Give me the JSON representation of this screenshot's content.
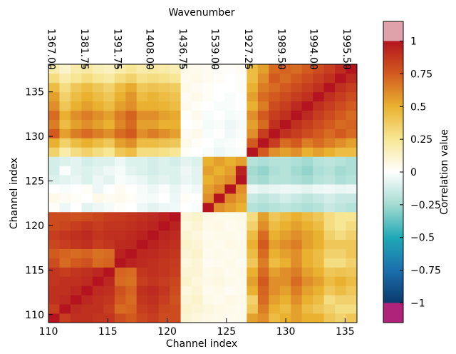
{
  "chart_data": {
    "type": "heatmap",
    "title": "Wavenumber",
    "xlabel": "Channel index",
    "ylabel": "Channel index",
    "xlim": [
      110,
      136
    ],
    "xticks": [
      110,
      115,
      120,
      125,
      130,
      135
    ],
    "ylim": [
      109.1,
      138.1
    ],
    "yticks": [
      110,
      115,
      120,
      125,
      130,
      135
    ],
    "x2ticks": [
      {
        "value": 110.2,
        "label": "1367.00"
      },
      {
        "value": 113.0,
        "label": "1381.75"
      },
      {
        "value": 115.8,
        "label": "1391.75"
      },
      {
        "value": 118.5,
        "label": "1408.00"
      },
      {
        "value": 121.3,
        "label": "1436.75"
      },
      {
        "value": 124.0,
        "label": "1539.00"
      },
      {
        "value": 126.8,
        "label": "1927.25"
      },
      {
        "value": 129.6,
        "label": "1989.50"
      },
      {
        "value": 132.3,
        "label": "1994.00"
      },
      {
        "value": 135.1,
        "label": "1995.50"
      }
    ],
    "z": [
      [
        1.0,
        0.85,
        0.9,
        0.9,
        0.88,
        0.88,
        0.8,
        0.75,
        0.82,
        0.85,
        0.8,
        0.8,
        0.1,
        0.08,
        0.06,
        0.05,
        0.04,
        0.05,
        0.55,
        0.6,
        0.45,
        0.5,
        0.55,
        0.5,
        0.5,
        0.4,
        0.35,
        0.4
      ],
      [
        0.85,
        1.0,
        0.92,
        0.9,
        0.9,
        0.85,
        0.7,
        0.72,
        0.85,
        0.88,
        0.82,
        0.8,
        0.12,
        0.1,
        0.08,
        0.06,
        0.05,
        0.04,
        0.4,
        0.65,
        0.5,
        0.45,
        0.55,
        0.45,
        0.4,
        0.35,
        0.3,
        0.3
      ],
      [
        0.9,
        0.92,
        1.0,
        0.93,
        0.9,
        0.88,
        0.75,
        0.7,
        0.88,
        0.9,
        0.85,
        0.78,
        0.1,
        0.12,
        0.05,
        0.04,
        0.06,
        0.05,
        0.35,
        0.7,
        0.55,
        0.5,
        0.6,
        0.5,
        0.45,
        0.3,
        0.35,
        0.35
      ],
      [
        0.9,
        0.9,
        0.93,
        1.0,
        0.92,
        0.9,
        0.78,
        0.72,
        0.9,
        0.92,
        0.88,
        0.8,
        0.08,
        0.1,
        0.04,
        0.05,
        0.03,
        0.04,
        0.5,
        0.72,
        0.6,
        0.55,
        0.65,
        0.55,
        0.5,
        0.4,
        0.45,
        0.4
      ],
      [
        0.88,
        0.9,
        0.9,
        0.92,
        1.0,
        0.93,
        0.7,
        0.68,
        0.85,
        0.88,
        0.85,
        0.82,
        0.12,
        0.08,
        0.06,
        0.07,
        0.05,
        0.04,
        0.55,
        0.75,
        0.6,
        0.6,
        0.7,
        0.6,
        0.55,
        0.45,
        0.5,
        0.45
      ],
      [
        0.88,
        0.85,
        0.88,
        0.9,
        0.93,
        1.0,
        0.72,
        0.7,
        0.88,
        0.9,
        0.88,
        0.85,
        0.1,
        0.1,
        0.05,
        0.06,
        0.04,
        0.05,
        0.5,
        0.7,
        0.55,
        0.6,
        0.65,
        0.55,
        0.5,
        0.4,
        0.42,
        0.4
      ],
      [
        0.8,
        0.7,
        0.75,
        0.78,
        0.7,
        0.72,
        1.0,
        0.95,
        0.92,
        0.9,
        0.88,
        0.86,
        0.08,
        0.1,
        0.03,
        0.04,
        0.05,
        0.03,
        0.4,
        0.65,
        0.45,
        0.5,
        0.6,
        0.5,
        0.45,
        0.3,
        0.3,
        0.35
      ],
      [
        0.75,
        0.72,
        0.7,
        0.72,
        0.68,
        0.7,
        0.95,
        1.0,
        0.93,
        0.92,
        0.9,
        0.88,
        0.1,
        0.12,
        0.04,
        0.05,
        0.04,
        0.05,
        0.45,
        0.7,
        0.5,
        0.55,
        0.6,
        0.5,
        0.45,
        0.35,
        0.35,
        0.4
      ],
      [
        0.82,
        0.85,
        0.88,
        0.9,
        0.85,
        0.88,
        0.92,
        0.93,
        1.0,
        0.95,
        0.92,
        0.9,
        0.12,
        0.1,
        0.05,
        0.04,
        0.06,
        0.05,
        0.5,
        0.75,
        0.55,
        0.6,
        0.65,
        0.55,
        0.5,
        0.4,
        0.4,
        0.4
      ],
      [
        0.85,
        0.88,
        0.9,
        0.92,
        0.88,
        0.9,
        0.9,
        0.92,
        0.95,
        1.0,
        0.94,
        0.92,
        0.1,
        0.08,
        0.04,
        0.05,
        0.05,
        0.04,
        0.45,
        0.7,
        0.5,
        0.55,
        0.6,
        0.55,
        0.5,
        0.35,
        0.3,
        0.35
      ],
      [
        0.8,
        0.82,
        0.85,
        0.88,
        0.85,
        0.88,
        0.88,
        0.9,
        0.92,
        0.94,
        1.0,
        0.95,
        0.08,
        0.1,
        0.05,
        0.06,
        0.04,
        0.05,
        0.35,
        0.6,
        0.45,
        0.5,
        0.55,
        0.5,
        0.45,
        0.3,
        0.25,
        0.3
      ],
      [
        0.8,
        0.8,
        0.78,
        0.8,
        0.82,
        0.85,
        0.86,
        0.88,
        0.9,
        0.92,
        0.95,
        1.0,
        0.1,
        0.12,
        0.06,
        0.05,
        0.05,
        0.06,
        0.3,
        0.55,
        0.4,
        0.45,
        0.5,
        0.45,
        0.4,
        0.3,
        0.25,
        0.25
      ],
      [
        0.02,
        -0.05,
        0.0,
        -0.08,
        -0.05,
        -0.03,
        0.02,
        0.0,
        -0.05,
        -0.08,
        -0.05,
        -0.04,
        0.0,
        -0.02,
        1.0,
        0.6,
        0.55,
        0.5,
        -0.2,
        -0.22,
        -0.2,
        -0.18,
        -0.2,
        -0.22,
        -0.2,
        -0.15,
        -0.18,
        -0.2
      ],
      [
        0.05,
        0.03,
        0.02,
        0.0,
        0.05,
        0.03,
        0.04,
        0.02,
        -0.02,
        -0.03,
        0.0,
        -0.05,
        0.02,
        0.0,
        0.6,
        1.0,
        0.62,
        0.55,
        -0.15,
        -0.18,
        -0.15,
        -0.12,
        -0.15,
        -0.18,
        -0.15,
        -0.12,
        -0.15,
        -0.15
      ],
      [
        0.0,
        -0.02,
        0.0,
        0.02,
        -0.05,
        0.0,
        0.03,
        0.0,
        -0.03,
        -0.05,
        -0.02,
        -0.06,
        -0.02,
        -0.04,
        0.55,
        0.62,
        1.0,
        0.6,
        -0.05,
        -0.08,
        -0.06,
        -0.05,
        -0.06,
        -0.08,
        -0.05,
        -0.04,
        -0.06,
        -0.05
      ],
      [
        -0.1,
        -0.08,
        -0.06,
        -0.1,
        -0.05,
        -0.08,
        -0.02,
        -0.04,
        -0.06,
        -0.1,
        -0.08,
        -0.1,
        -0.06,
        -0.08,
        0.5,
        0.55,
        0.6,
        1.0,
        -0.22,
        -0.25,
        -0.2,
        -0.2,
        -0.22,
        -0.25,
        -0.2,
        -0.18,
        -0.22,
        -0.2
      ],
      [
        -0.12,
        -0.02,
        -0.08,
        -0.1,
        -0.08,
        -0.05,
        -0.03,
        -0.08,
        -0.1,
        -0.12,
        -0.1,
        -0.1,
        -0.05,
        -0.08,
        0.55,
        0.5,
        0.55,
        0.95,
        -0.25,
        -0.28,
        -0.22,
        -0.2,
        -0.25,
        -0.28,
        -0.22,
        -0.2,
        -0.25,
        -0.22
      ],
      [
        -0.12,
        -0.1,
        -0.08,
        -0.12,
        -0.1,
        -0.1,
        -0.05,
        -0.1,
        -0.1,
        -0.12,
        -0.1,
        -0.12,
        -0.08,
        -0.1,
        0.5,
        0.55,
        0.5,
        0.55,
        -0.2,
        -0.22,
        -0.2,
        -0.2,
        -0.22,
        -0.25,
        -0.2,
        -0.18,
        -0.2,
        -0.22
      ],
      [
        0.35,
        0.2,
        0.3,
        0.35,
        0.3,
        0.25,
        0.4,
        0.45,
        0.3,
        0.3,
        0.28,
        0.25,
        0.02,
        0.0,
        -0.02,
        -0.05,
        -0.03,
        -0.02,
        1.0,
        0.75,
        0.6,
        0.55,
        0.6,
        0.5,
        0.55,
        0.5,
        0.45,
        0.45
      ],
      [
        0.5,
        0.35,
        0.45,
        0.5,
        0.45,
        0.4,
        0.55,
        0.6,
        0.45,
        0.45,
        0.42,
        0.4,
        0.05,
        0.02,
        0.0,
        -0.03,
        -0.02,
        0.0,
        0.75,
        1.0,
        0.85,
        0.7,
        0.75,
        0.65,
        0.7,
        0.65,
        0.6,
        0.55
      ],
      [
        0.75,
        0.55,
        0.65,
        0.7,
        0.65,
        0.6,
        0.7,
        0.75,
        0.6,
        0.65,
        0.6,
        0.55,
        0.03,
        0.05,
        -0.02,
        0.0,
        -0.04,
        -0.02,
        0.6,
        0.85,
        1.0,
        0.9,
        0.85,
        0.8,
        0.75,
        0.7,
        0.75,
        0.7
      ],
      [
        0.65,
        0.45,
        0.55,
        0.6,
        0.55,
        0.5,
        0.62,
        0.7,
        0.55,
        0.55,
        0.5,
        0.5,
        0.0,
        0.02,
        -0.03,
        -0.02,
        -0.05,
        -0.03,
        0.55,
        0.7,
        0.9,
        1.0,
        0.9,
        0.85,
        0.8,
        0.75,
        0.7,
        0.72
      ],
      [
        0.7,
        0.5,
        0.6,
        0.65,
        0.6,
        0.55,
        0.65,
        0.72,
        0.6,
        0.6,
        0.55,
        0.52,
        0.02,
        0.04,
        -0.02,
        0.0,
        -0.03,
        -0.02,
        0.6,
        0.75,
        0.85,
        0.9,
        1.0,
        0.92,
        0.85,
        0.8,
        0.75,
        0.7
      ],
      [
        0.6,
        0.4,
        0.5,
        0.55,
        0.5,
        0.45,
        0.55,
        0.6,
        0.5,
        0.5,
        0.48,
        0.45,
        0.04,
        0.02,
        0.0,
        -0.02,
        -0.02,
        0.0,
        0.5,
        0.65,
        0.8,
        0.85,
        0.92,
        1.0,
        0.9,
        0.85,
        0.8,
        0.75
      ],
      [
        0.55,
        0.35,
        0.45,
        0.5,
        0.45,
        0.4,
        0.5,
        0.58,
        0.45,
        0.48,
        0.45,
        0.42,
        0.03,
        0.05,
        0.02,
        0.0,
        -0.02,
        0.0,
        0.55,
        0.7,
        0.75,
        0.8,
        0.85,
        0.9,
        1.0,
        0.9,
        0.85,
        0.8
      ],
      [
        0.45,
        0.3,
        0.4,
        0.45,
        0.4,
        0.35,
        0.45,
        0.52,
        0.4,
        0.42,
        0.4,
        0.38,
        0.05,
        0.03,
        0.02,
        0.0,
        0.0,
        0.02,
        0.5,
        0.65,
        0.7,
        0.75,
        0.8,
        0.85,
        0.9,
        1.0,
        0.9,
        0.85
      ],
      [
        0.3,
        0.2,
        0.25,
        0.3,
        0.25,
        0.22,
        0.3,
        0.35,
        0.28,
        0.3,
        0.28,
        0.25,
        0.04,
        0.05,
        0.03,
        0.02,
        0.0,
        0.02,
        0.45,
        0.6,
        0.75,
        0.7,
        0.75,
        0.8,
        0.85,
        0.9,
        1.0,
        0.92
      ],
      [
        0.2,
        0.12,
        0.2,
        0.22,
        0.18,
        0.15,
        0.2,
        0.25,
        0.2,
        0.22,
        0.2,
        0.18,
        0.05,
        0.04,
        0.03,
        0.02,
        0.02,
        0.03,
        0.45,
        0.55,
        0.7,
        0.72,
        0.7,
        0.75,
        0.8,
        0.85,
        0.92,
        1.0
      ]
    ],
    "colorbar": {
      "label": "Correlation value",
      "lim": [
        -1.15,
        1.15
      ],
      "ticks": [
        {
          "value": -1,
          "label": "−1"
        },
        {
          "value": -0.75,
          "label": "−0.75"
        },
        {
          "value": -0.5,
          "label": "−0.5"
        },
        {
          "value": -0.25,
          "label": "−0.25"
        },
        0,
        0.25,
        0.5,
        0.75,
        1
      ],
      "color_range": [
        -1,
        1
      ],
      "colors": [
        "#0b3a6e",
        "#1b6fae",
        "#1fa9b6",
        "#a3dbd0",
        "#ffffff",
        "#f7e795",
        "#e9b12f",
        "#d25a1f",
        "#b3141f"
      ],
      "over_color": "#e0a2aa",
      "under_color": "#b0237b"
    }
  }
}
